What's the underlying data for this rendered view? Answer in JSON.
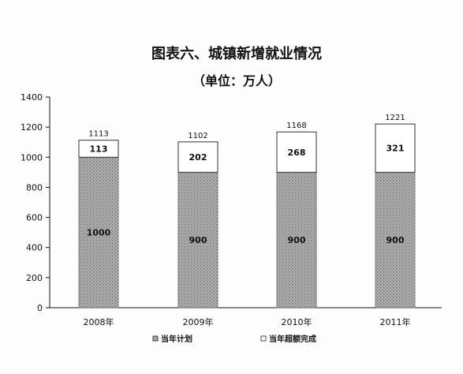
{
  "chart_data": {
    "type": "bar",
    "stacked": true,
    "title": "图表六、城镇新增就业情况",
    "subtitle": "（单位：万人）",
    "categories": [
      "2008年",
      "2009年",
      "2010年",
      "2011年"
    ],
    "series": [
      {
        "name": "当年计划",
        "values": [
          1000,
          900,
          900,
          900
        ],
        "color": "#9b9b9b",
        "pattern": "dotted-gray"
      },
      {
        "name": "当年超额完成",
        "values": [
          113,
          202,
          268,
          321
        ],
        "color": "#ffffff",
        "pattern": "white"
      }
    ],
    "totals": [
      1113,
      1102,
      1168,
      1221
    ],
    "ylim": [
      0,
      1400
    ],
    "yticks": [
      0,
      200,
      400,
      600,
      800,
      1000,
      1200,
      1400
    ],
    "grid": false,
    "legend_placement": "bottom"
  }
}
